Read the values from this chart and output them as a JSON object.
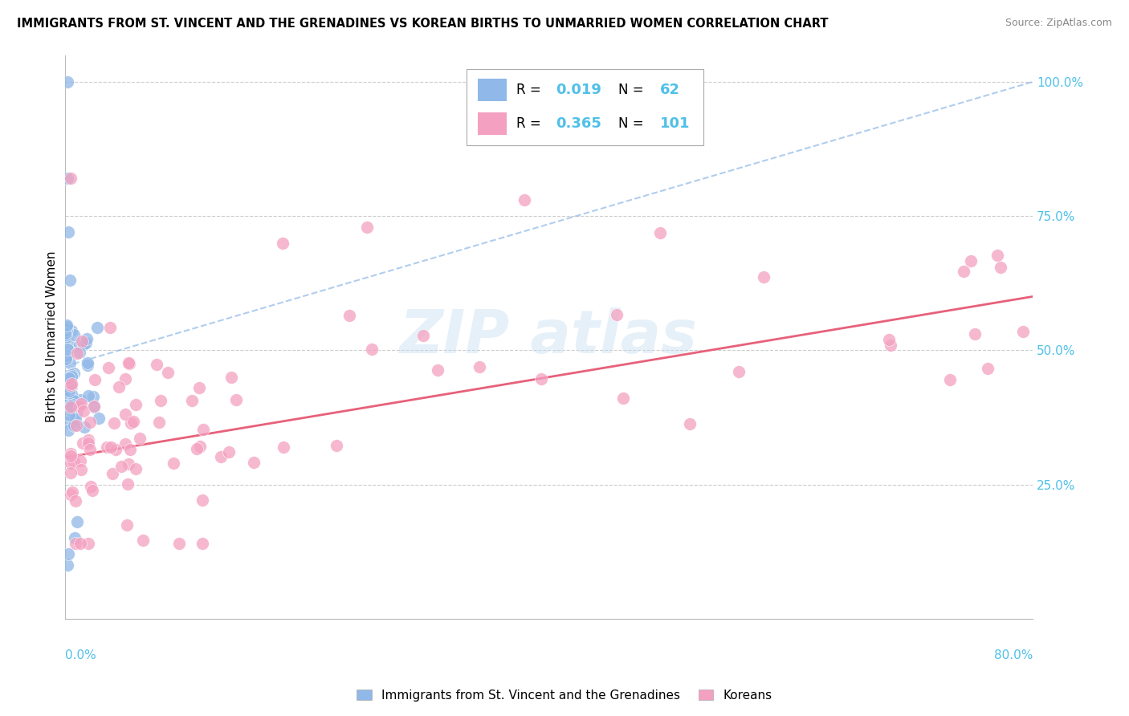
{
  "title": "IMMIGRANTS FROM ST. VINCENT AND THE GRENADINES VS KOREAN BIRTHS TO UNMARRIED WOMEN CORRELATION CHART",
  "source": "Source: ZipAtlas.com",
  "ylabel": "Births to Unmarried Women",
  "legend_label_blue": "Immigrants from St. Vincent and the Grenadines",
  "legend_label_pink": "Koreans",
  "blue_color": "#90B8E8",
  "pink_color": "#F4A0C0",
  "blue_line_color": "#90B8E8",
  "pink_line_color": "#E8607A",
  "cyan_color": "#4FC0E8",
  "xlim": [
    0.0,
    0.8
  ],
  "ylim": [
    0.0,
    1.05
  ],
  "blue_trendline_x": [
    0.0,
    0.8
  ],
  "blue_trendline_y": [
    0.47,
    1.0
  ],
  "pink_trendline_x": [
    0.0,
    0.8
  ],
  "pink_trendline_y": [
    0.3,
    0.6
  ],
  "yticks": [
    0.25,
    0.5,
    0.75,
    1.0
  ],
  "ytick_labels": [
    "25.0%",
    "50.0%",
    "75.0%",
    "100.0%"
  ]
}
